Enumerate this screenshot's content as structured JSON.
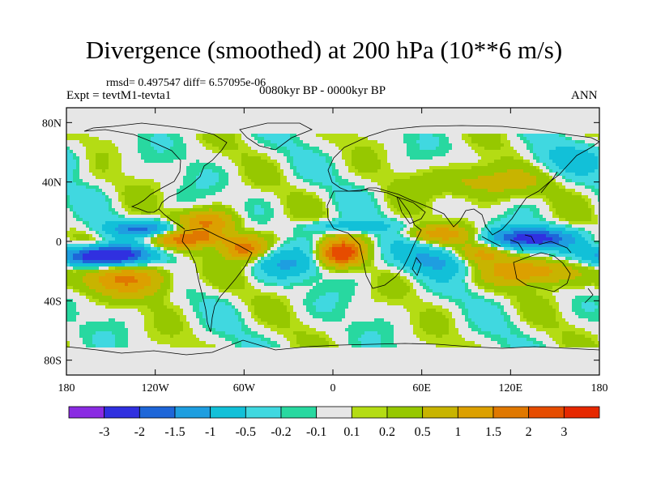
{
  "title": "Divergence (smoothed) at 200 hPa (10**6 m/s)",
  "stats": "rmsd= 0.497547 diff= 6.57095e-06",
  "experiment": "Expt = tevtM1-tevta1",
  "period": "0080kyr BP - 0000kyr BP",
  "season": "ANN",
  "lat_ticks": [
    {
      "label": "80N",
      "lat": 80
    },
    {
      "label": "40N",
      "lat": 40
    },
    {
      "label": "0",
      "lat": 0
    },
    {
      "label": "40S",
      "lat": -40
    },
    {
      "label": "80S",
      "lat": -80
    }
  ],
  "lon_ticks": [
    {
      "label": "180",
      "lon": -180
    },
    {
      "label": "120W",
      "lon": -120
    },
    {
      "label": "60W",
      "lon": -60
    },
    {
      "label": "0",
      "lon": 0
    },
    {
      "label": "60E",
      "lon": 60
    },
    {
      "label": "120E",
      "lon": 120
    },
    {
      "label": "180",
      "lon": 180
    }
  ],
  "colorbar": {
    "colors": [
      "#8a2be2",
      "#3030e0",
      "#1e66d8",
      "#1e9ee0",
      "#12c0d8",
      "#40d8e0",
      "#28d8a0",
      "#e6e6e6",
      "#b4dc14",
      "#96c800",
      "#c8b400",
      "#dca000",
      "#e07800",
      "#e64c00",
      "#e62800"
    ],
    "labels": [
      "-3",
      "-2",
      "-1.5",
      "-1",
      "-0.5",
      "-0.2",
      "-0.1",
      "0.1",
      "0.2",
      "0.5",
      "1",
      "1.5",
      "2",
      "3"
    ]
  },
  "chart_data": {
    "type": "heatmap",
    "projection": "cylindrical-equidistant",
    "variable": "200 hPa divergence difference (smoothed)",
    "units": "10**6 m/s",
    "xlim": [
      -180,
      180
    ],
    "ylim": [
      -90,
      90
    ],
    "levels": [
      -3,
      -2,
      -1.5,
      -1,
      -0.5,
      -0.2,
      -0.1,
      0.1,
      0.2,
      0.5,
      1,
      1.5,
      2,
      3
    ],
    "features": [
      {
        "name": "east-pacific-convergence",
        "lon": -155,
        "lat": -10,
        "amp": -3.2,
        "sx": 20,
        "sy": 5
      },
      {
        "name": "pacific-convergence-2",
        "lon": -125,
        "lat": 8,
        "amp": -1.6,
        "sx": 20,
        "sy": 4
      },
      {
        "name": "pacific-divergence",
        "lon": -140,
        "lat": -25,
        "amp": 1.3,
        "sx": 25,
        "sy": 8
      },
      {
        "name": "pacific-div-2",
        "lon": -100,
        "lat": 2,
        "amp": 1.4,
        "sx": 25,
        "sy": 4
      },
      {
        "name": "central-america-div",
        "lon": -85,
        "lat": 12,
        "amp": 1.6,
        "sx": 14,
        "sy": 6
      },
      {
        "name": "amazon-div",
        "lon": -60,
        "lat": -5,
        "amp": 1.8,
        "sx": 10,
        "sy": 5
      },
      {
        "name": "atlantic-conv",
        "lon": -30,
        "lat": -15,
        "amp": -0.9,
        "sx": 15,
        "sy": 7
      },
      {
        "name": "congo-div",
        "lon": 5,
        "lat": -8,
        "amp": 2.4,
        "sx": 10,
        "sy": 6
      },
      {
        "name": "sahel-conv",
        "lon": 10,
        "lat": 10,
        "amp": -0.9,
        "sx": 20,
        "sy": 3
      },
      {
        "name": "indian-ocean-conv",
        "lon": 70,
        "lat": -12,
        "amp": -1.0,
        "sx": 20,
        "sy": 7
      },
      {
        "name": "indian-ocean-div",
        "lon": 70,
        "lat": 5,
        "amp": 1.0,
        "sx": 18,
        "sy": 4
      },
      {
        "name": "maritime-div",
        "lon": 100,
        "lat": -8,
        "amp": 1.3,
        "sx": 12,
        "sy": 5
      },
      {
        "name": "west-pacific-conv",
        "lon": 135,
        "lat": 2,
        "amp": -2.5,
        "sx": 18,
        "sy": 5
      },
      {
        "name": "australia-div",
        "lon": 135,
        "lat": -20,
        "amp": 1.5,
        "sx": 20,
        "sy": 6
      },
      {
        "name": "siberia-div",
        "lon": 100,
        "lat": 40,
        "amp": 0.8,
        "sx": 25,
        "sy": 8
      },
      {
        "name": "north-pacific-conv",
        "lon": 160,
        "lat": 55,
        "amp": -0.6,
        "sx": 20,
        "sy": 7
      }
    ]
  }
}
